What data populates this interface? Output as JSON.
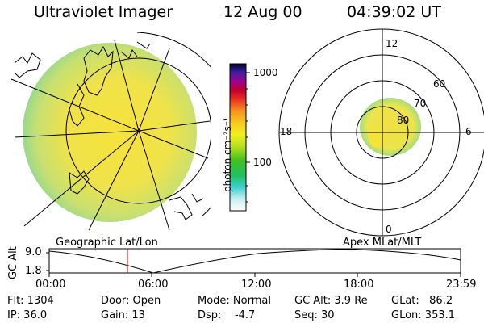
{
  "header": {
    "title": "Ultraviolet Imager",
    "date": "12 Aug 00",
    "time": "04:39:02 UT"
  },
  "colorbar": {
    "unit": "photon cm⁻²s⁻¹",
    "tick_high": "1000",
    "tick_mid": "100"
  },
  "polar": {
    "labels": {
      "top": "12",
      "right": "6",
      "bottom": "0",
      "left": "18"
    },
    "lat_labels": [
      "60",
      "70",
      "80"
    ]
  },
  "maps": {
    "left_caption": "Geographic Lat/Lon",
    "right_caption": "Apex MLat/MLT"
  },
  "altitude": {
    "ylabel": "GC Alt",
    "y_top": "9.0",
    "y_bottom": "1.8",
    "ticks": [
      "00:00",
      "06:00",
      "12:00",
      "18:00",
      "23:59"
    ]
  },
  "info": {
    "flt": "Flt: 1304",
    "ip": "IP: 36.0",
    "door": "Door: Open",
    "gain": "Gain: 13",
    "mode": "Mode: Normal",
    "dsp": "Dsp:    -4.7",
    "gcalt": "GC Alt: 3.9 Re",
    "seq": "Seq: 30",
    "glat": "GLat:   86.2",
    "glon": "GLon: 353.1"
  },
  "colors": {
    "disk": "#f0e040",
    "oval": "#e8e050",
    "marker": "#d00000"
  }
}
